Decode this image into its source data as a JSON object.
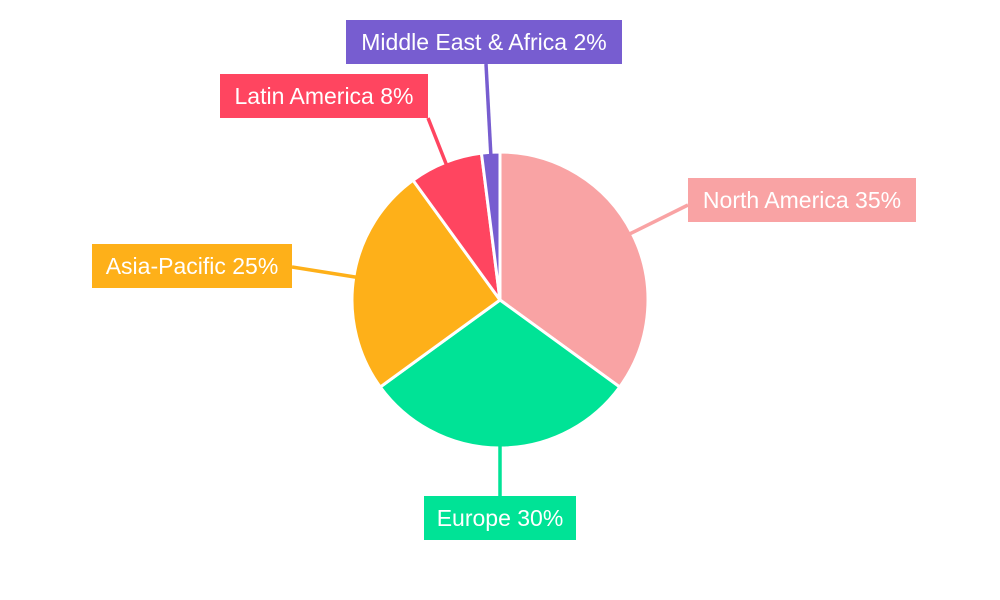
{
  "chart_data": {
    "type": "pie",
    "title": "",
    "start": "top",
    "direction": "clockwise",
    "slices": [
      {
        "label": "North America",
        "value": 35,
        "display": "North America 35%",
        "color": "#F9A3A4"
      },
      {
        "label": "Europe",
        "value": 30,
        "display": "Europe 30%",
        "color": "#00E396"
      },
      {
        "label": "Asia-Pacific",
        "value": 25,
        "display": "Asia-Pacific 25%",
        "color": "#FEB019"
      },
      {
        "label": "Latin America",
        "value": 8,
        "display": "Latin America 8%",
        "color": "#FF4560"
      },
      {
        "label": "Middle East & Africa",
        "value": 2,
        "display": "Middle East & Africa 2%",
        "color": "#775DD0"
      }
    ]
  }
}
